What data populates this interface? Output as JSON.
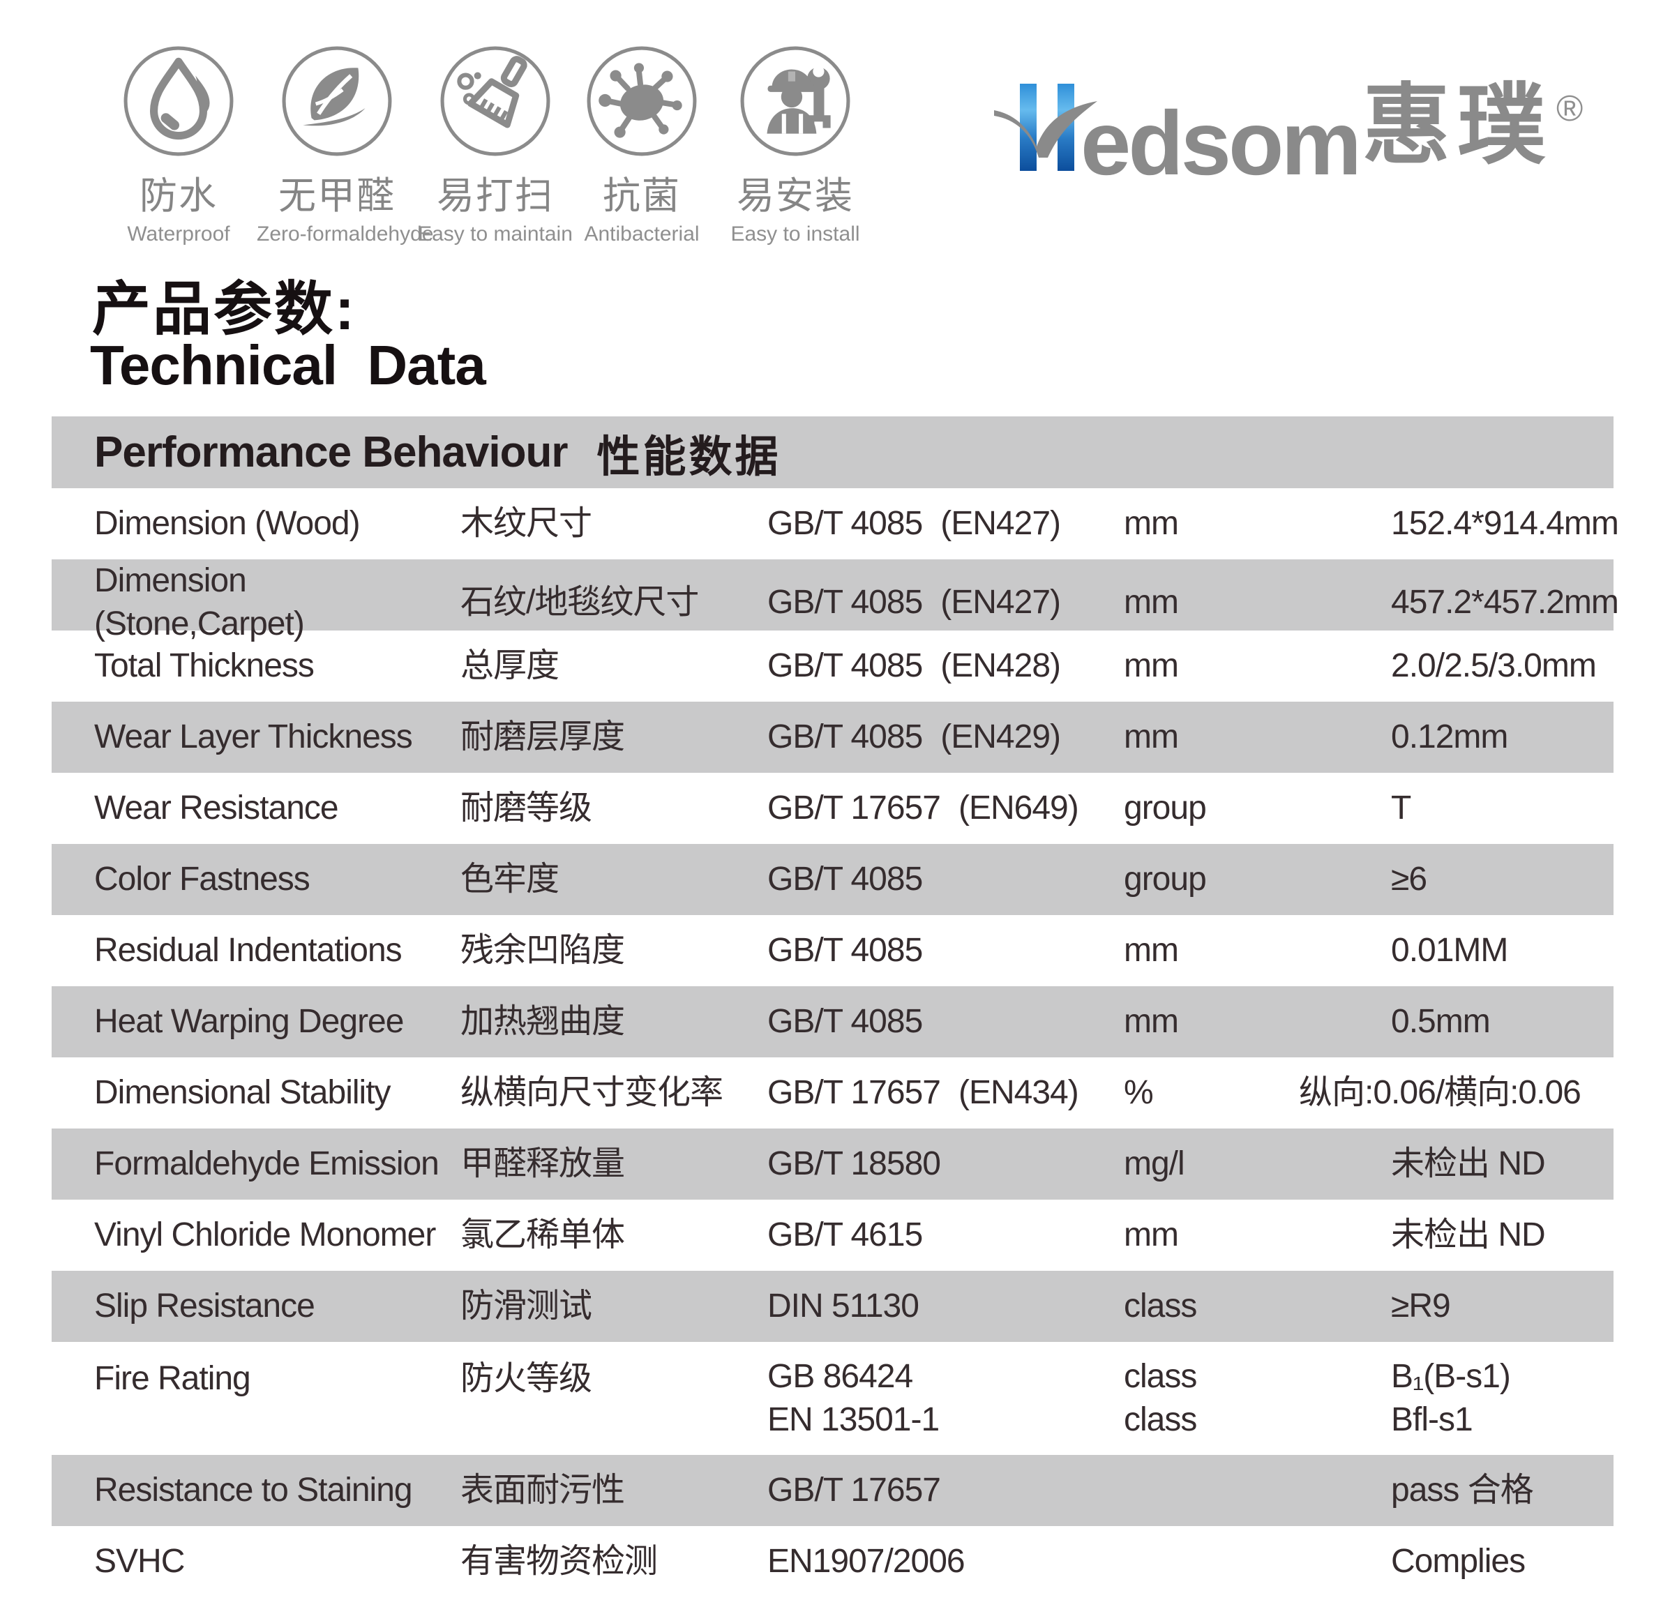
{
  "badges": [
    {
      "zh": "防水",
      "en": "Waterproof",
      "icon": "waterdrop-icon"
    },
    {
      "zh": "无甲醛",
      "en": "Zero-formaldehyde",
      "icon": "leaf-icon"
    },
    {
      "zh": "易打扫",
      "en": "Easy to maintain",
      "icon": "broom-icon"
    },
    {
      "zh": "抗菌",
      "en": "Antibacterial",
      "icon": "virus-icon"
    },
    {
      "zh": "易安装",
      "en": "Easy to install",
      "icon": "worker-wrench-icon"
    }
  ],
  "logo": {
    "name": "Hedsom",
    "word_tail": "edsom",
    "cjk": "惠璞",
    "registered": "®",
    "accent_blue": "#1e6fb8",
    "gray": "#8a8a8a"
  },
  "title": {
    "zh": "产品参数:",
    "en": "Technical  Data"
  },
  "table": {
    "header": {
      "en": "Performance Behaviour",
      "zh": "性能数据"
    },
    "shade_color": "#c9c9ca",
    "rows": [
      {
        "en": "Dimension (Wood)",
        "zh": "木纹尺寸",
        "std": "GB/T 4085",
        "std_en": "(EN427)",
        "unit": "mm",
        "value": "152.4*914.4mm",
        "shaded": false
      },
      {
        "en": "Dimension (Stone,Carpet)",
        "zh": "石纹/地毯纹尺寸",
        "std": "GB/T 4085",
        "std_en": "(EN427)",
        "unit": "mm",
        "value": "457.2*457.2mm",
        "shaded": true
      },
      {
        "en": "Total Thickness",
        "zh": "总厚度",
        "std": "GB/T 4085",
        "std_en": "(EN428)",
        "unit": "mm",
        "value": "2.0/2.5/3.0mm",
        "shaded": false
      },
      {
        "en": "Wear Layer Thickness",
        "zh": "耐磨层厚度",
        "std": "GB/T 4085",
        "std_en": "(EN429)",
        "unit": "mm",
        "value": "0.12mm",
        "shaded": true
      },
      {
        "en": "Wear Resistance",
        "zh": "耐磨等级",
        "std": "GB/T 17657",
        "std_en": "(EN649)",
        "unit": "group",
        "value": "T",
        "shaded": false
      },
      {
        "en": "Color Fastness",
        "zh": "色牢度",
        "std": "GB/T 4085",
        "std_en": "",
        "unit": "group",
        "value": "≥6",
        "shaded": true
      },
      {
        "en": "Residual Indentations",
        "zh": "残余凹陷度",
        "std": "GB/T 4085",
        "std_en": "",
        "unit": "mm",
        "value": "0.01MM",
        "shaded": false
      },
      {
        "en": "Heat Warping Degree",
        "zh": "加热翘曲度",
        "std": "GB/T 4085",
        "std_en": "",
        "unit": "mm",
        "value": "0.5mm",
        "shaded": true
      },
      {
        "en": "Dimensional Stability",
        "zh": "纵横向尺寸变化率",
        "std": "GB/T 17657",
        "std_en": "(EN434)",
        "unit": "%",
        "value": "纵向:0.06/横向:0.06",
        "shaded": false,
        "value_wide": true
      },
      {
        "en": "Formaldehyde Emission",
        "zh": "甲醛释放量",
        "std": "GB/T 18580",
        "std_en": "",
        "unit": "mg/l",
        "value": "未检出 ND",
        "shaded": true
      },
      {
        "en": "Vinyl Chloride Monomer",
        "zh": "氯乙稀单体",
        "std": "GB/T 4615",
        "std_en": "",
        "unit": "mm",
        "value": "未检出 ND",
        "shaded": false
      },
      {
        "en": "Slip Resistance",
        "zh": "防滑测试",
        "std": "DIN 51130",
        "std_en": "",
        "unit": "class",
        "value": "≥R9",
        "shaded": true
      },
      {
        "en": "Fire Rating",
        "zh": "防火等级",
        "std": "GB 86424\nEN 13501-1",
        "std_en": "",
        "unit": "class\nclass",
        "value": "B₁(B-s1)\nBfl-s1",
        "shaded": false,
        "two_line": true
      },
      {
        "en": "Resistance to Staining",
        "zh": "表面耐污性",
        "std": "GB/T 17657",
        "std_en": "",
        "unit": "",
        "value": "pass 合格",
        "shaded": true
      },
      {
        "en": "SVHC",
        "zh": "有害物资检测",
        "std": "EN1907/2006",
        "std_en": "",
        "unit": "",
        "value": "Complies",
        "shaded": false
      }
    ]
  }
}
